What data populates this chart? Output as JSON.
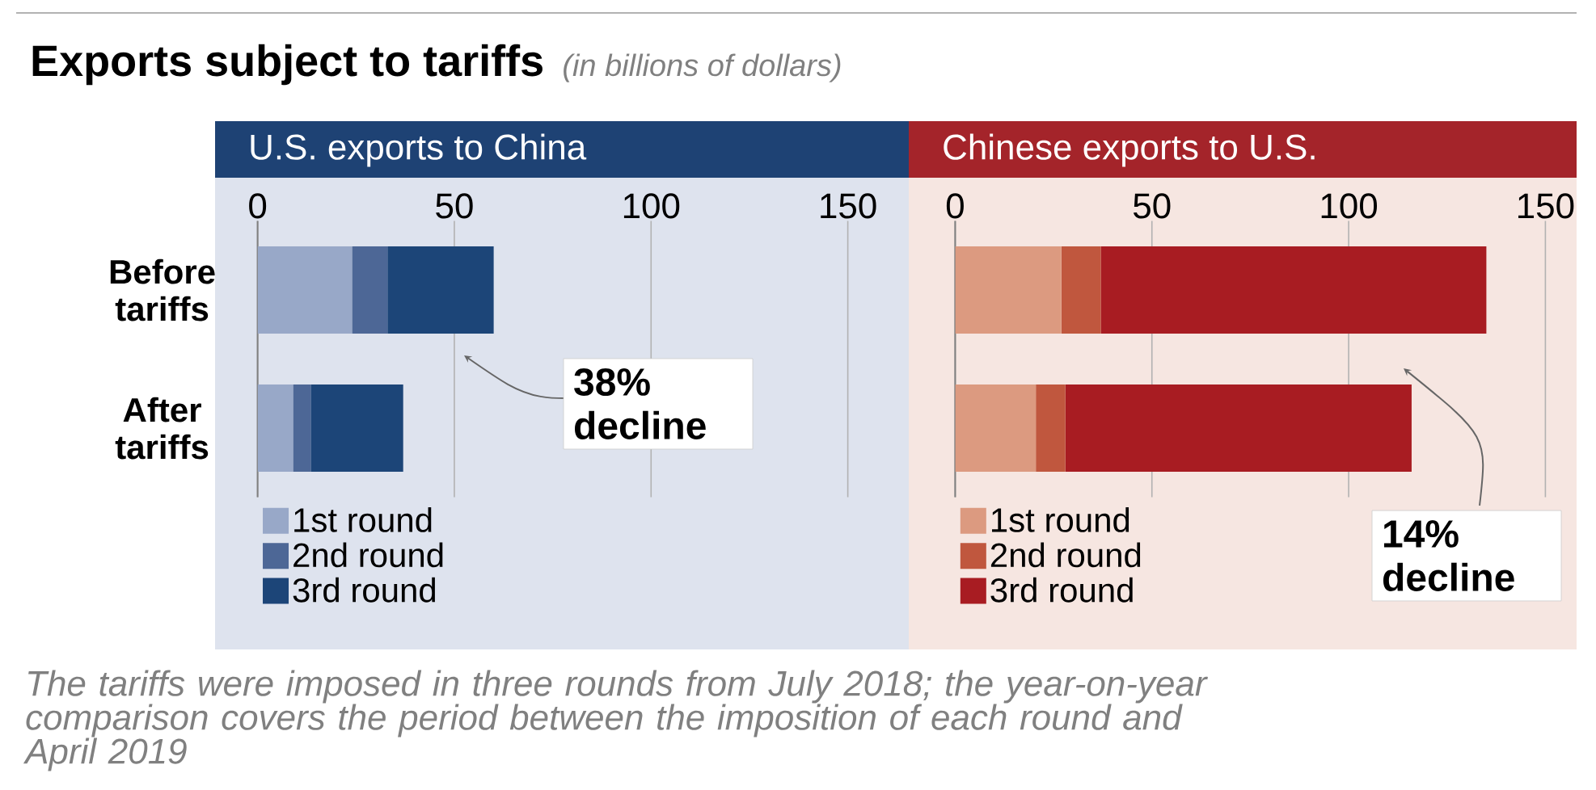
{
  "chart_data": [
    {
      "type": "bar",
      "orientation": "horizontal",
      "stacked": true,
      "title": "U.S. exports to China",
      "categories": [
        "Before tariffs",
        "After tariffs"
      ],
      "series": [
        {
          "name": "1st round",
          "color": "#98a8c8",
          "values": [
            24,
            9
          ]
        },
        {
          "name": "2nd round",
          "color": "#4d6796",
          "values": [
            9,
            4.5
          ]
        },
        {
          "name": "3rd round",
          "color": "#1c4578",
          "values": [
            27,
            23.5
          ]
        }
      ],
      "xlim": [
        0,
        150
      ],
      "xticks": [
        0,
        50,
        100,
        150
      ],
      "grid": "x",
      "legend": "bottom",
      "annotations": [
        "Exports subject to tariffs",
        "(in billions of dollars)",
        "38% decline",
        "The tariffs were imposed in three rounds from July 2018; the year-on-year comparison covers the period between the imposition of each round and April 2019"
      ]
    },
    {
      "type": "bar",
      "orientation": "horizontal",
      "stacked": true,
      "title": "Chinese exports to U.S.",
      "categories": [
        null,
        null
      ],
      "series": [
        {
          "name": "1st round",
          "color": "#dc9a80",
          "values": [
            27,
            20.5
          ]
        },
        {
          "name": "2nd round",
          "color": "#c0573e",
          "values": [
            10,
            7.5
          ]
        },
        {
          "name": "3rd round",
          "color": "#a81c22",
          "values": [
            98,
            88
          ]
        }
      ],
      "xlim": [
        0,
        150
      ],
      "xticks": [
        0,
        50,
        100,
        150
      ],
      "grid": "x",
      "legend": "bottom",
      "annotations": [
        "14% decline"
      ]
    }
  ]
}
